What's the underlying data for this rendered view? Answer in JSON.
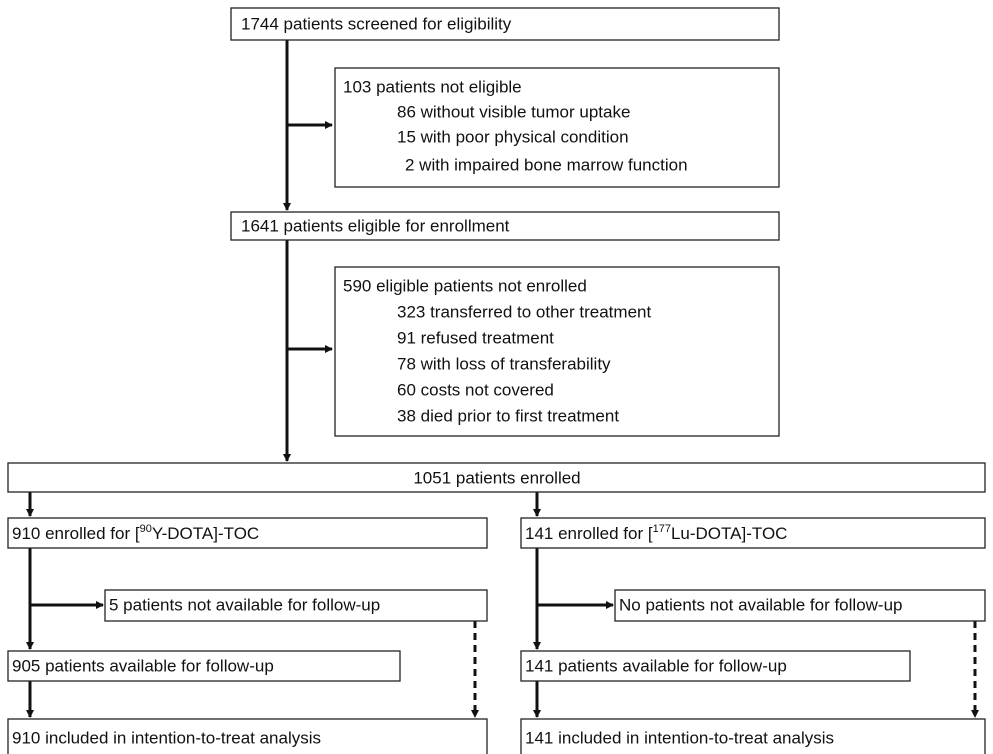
{
  "boxes": [
    {
      "title": "1744 patients screened for eligibility"
    },
    {
      "title": "103 patients not eligible",
      "items": [
        "86 without visible tumor uptake",
        "15 with poor physical condition",
        "2 with impaired bone marrow function"
      ]
    },
    {
      "title": "1641 patients eligible for enrollment"
    },
    {
      "title": "590 eligible patients not enrolled",
      "items": [
        "323 transferred to other treatment",
        "91 refused treatment",
        "78 with loss of transferability",
        "60 costs not covered",
        "38 died prior to first treatment"
      ]
    },
    {
      "title": "1051 patients enrolled"
    },
    {
      "title_parts": [
        "910 enrolled for [",
        "90",
        "Y-DOTA]-TOC"
      ]
    },
    {
      "title_parts": [
        "141 enrolled for [",
        "177",
        "Lu-DOTA]-TOC"
      ]
    },
    {
      "title": "5 patients not available for follow-up"
    },
    {
      "title": "No patients not available for follow-up"
    },
    {
      "title": "905 patients available for follow-up"
    },
    {
      "title": "141 patients available for follow-up"
    },
    {
      "title": "910 included in intention-to-treat analysis"
    },
    {
      "title": "141 included in intention-to-treat analysis"
    }
  ]
}
